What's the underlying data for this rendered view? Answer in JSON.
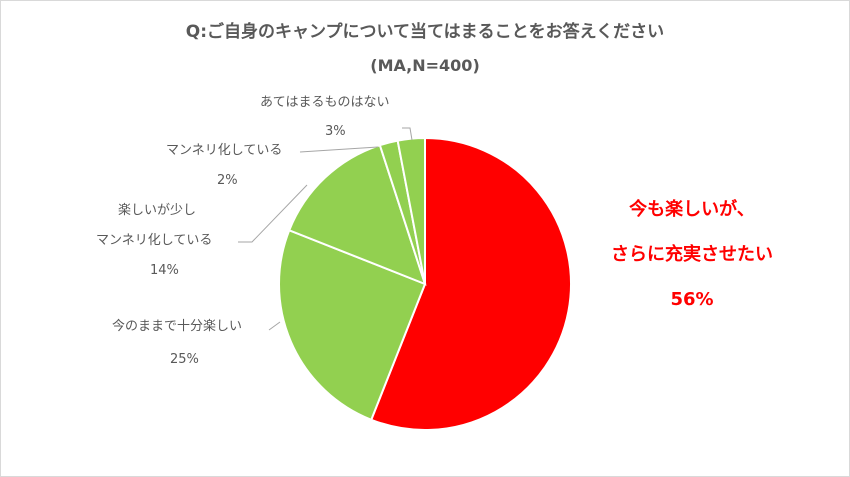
{
  "chart_data": {
    "type": "pie",
    "title": "Q:ご自身のキャンプについて当てはまることをお答えください",
    "subtitle": "(MA,N=400)",
    "slices": [
      {
        "label": [
          "今も楽しいが、",
          "さらに充実させたい"
        ],
        "value": 56,
        "value_text": "56%",
        "color": "#ff0000"
      },
      {
        "label": [
          "今のままで十分楽しい"
        ],
        "value": 25,
        "value_text": "25%",
        "color": "#92d050"
      },
      {
        "label": [
          "楽しいが少し",
          "マンネリ化している"
        ],
        "value": 14,
        "value_text": "14%",
        "color": "#92d050"
      },
      {
        "label": [
          "マンネリ化している"
        ],
        "value": 2,
        "value_text": "2%",
        "color": "#92d050"
      },
      {
        "label": [
          "あてはまるものはない"
        ],
        "value": 3,
        "value_text": "3%",
        "color": "#92d050"
      }
    ]
  }
}
